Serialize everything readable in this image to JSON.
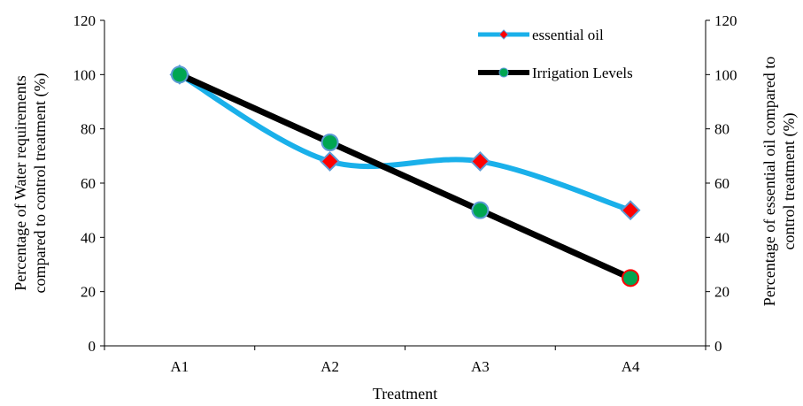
{
  "chart_data": {
    "type": "line",
    "categories": [
      "A1",
      "A2",
      "A3",
      "A4"
    ],
    "xlabel": "Treatment",
    "ylabel_left": [
      "Percentage of Water requirements",
      "compared to control treatment (%)"
    ],
    "ylabel_right": [
      "Percentage of essential oil compared to",
      "control treatment (%)"
    ],
    "ylim": [
      0,
      120
    ],
    "yticks": [
      0,
      20,
      40,
      60,
      80,
      100,
      120
    ],
    "legend_placement": "top-right",
    "series": [
      {
        "name": "essential oil",
        "values": [
          100,
          68,
          68,
          50
        ],
        "line_color": "#1ab0ea",
        "marker": "diamond",
        "marker_fill": "#ff0000",
        "marker_stroke": "#5b9bd5",
        "smooth": true
      },
      {
        "name": "Irrigation Levels",
        "values": [
          100,
          75,
          50,
          25
        ],
        "line_color": "#000000",
        "marker": "circle",
        "marker_fill": "#00a651",
        "marker_stroke": "#5b9bd5",
        "marker_stroke_last": "#ff0000",
        "smooth": false
      }
    ]
  }
}
